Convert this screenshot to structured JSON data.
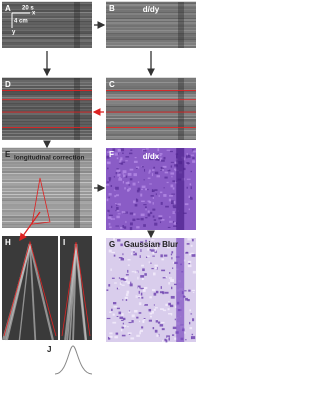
{
  "panels": [
    {
      "label": "A"
    },
    {
      "label": "B",
      "caption": "d/dy"
    },
    {
      "label": "C"
    },
    {
      "label": "D"
    },
    {
      "label": "E",
      "caption": "longitudinal correction"
    },
    {
      "label": "F",
      "caption": "d/dx"
    },
    {
      "label": "G",
      "caption": "Gaussian Blur"
    },
    {
      "label": "H"
    },
    {
      "label": "I"
    },
    {
      "label": "J"
    }
  ],
  "scale_bar": {
    "time": "20 s",
    "x_axis": "x",
    "distance": "4 cm",
    "y_axis": "y"
  }
}
